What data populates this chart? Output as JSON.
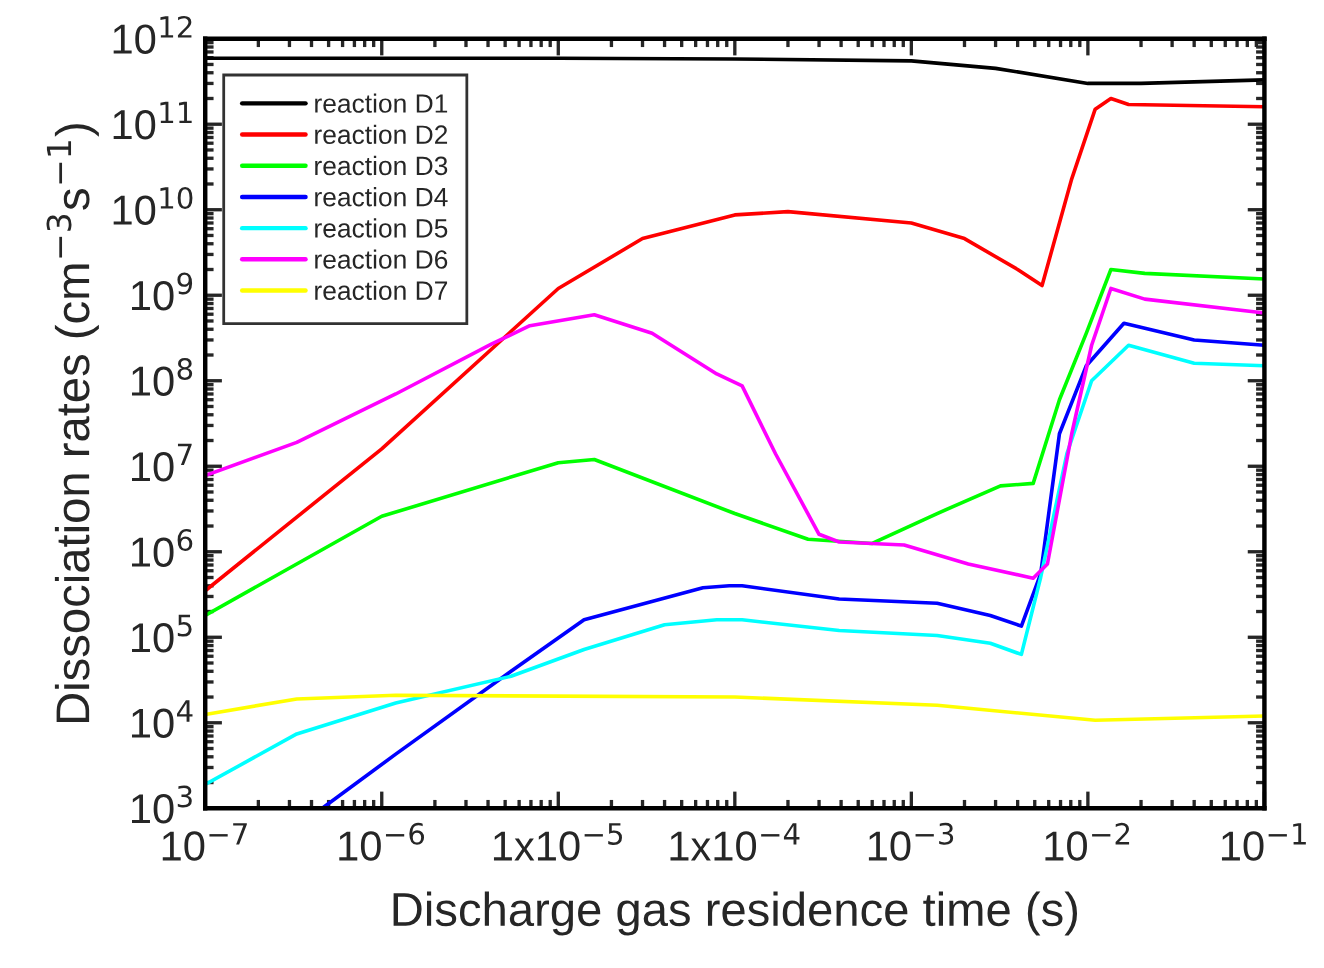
{
  "chart_data": {
    "type": "line",
    "xlabel": "Discharge gas residence time (s)",
    "ylabel": "Dissociation rates (cm$^{−3}$s$^{−1}$)",
    "log": "xy",
    "grid": false,
    "legend": "top left",
    "marker": "none",
    "line_style": "solid",
    "xlim": [
      1e-07,
      0.1
    ],
    "ylim": [
      1000,
      1000000000000.0
    ],
    "xticks": [
      {
        "value": 1e-07,
        "label": "10$^{−7}$"
      },
      {
        "value": 1e-06,
        "label": "10$^{−6}$"
      },
      {
        "value": 1e-05,
        "label": "1x10$^{−5}$"
      },
      {
        "value": 0.0001,
        "label": "1x10$^{−4}$"
      },
      {
        "value": 0.001,
        "label": "10$^{−3}$"
      },
      {
        "value": 0.01,
        "label": "10$^{−2}$"
      },
      {
        "value": 0.1,
        "label": "10$^{−1}$"
      }
    ],
    "yticks": [
      {
        "value": 1000,
        "label": "10$^{3}$"
      },
      {
        "value": 10000.0,
        "label": "10$^{4}$"
      },
      {
        "value": 100000.0,
        "label": "10$^{5}$"
      },
      {
        "value": 1000000.0,
        "label": "10$^{6}$"
      },
      {
        "value": 10000000.0,
        "label": "10$^{7}$"
      },
      {
        "value": 100000000.0,
        "label": "10$^{8}$"
      },
      {
        "value": 1000000000.0,
        "label": "10$^{9}$"
      },
      {
        "value": 10000000000.0,
        "label": "10$^{10}$"
      },
      {
        "value": 100000000000.0,
        "label": "10$^{11}$"
      },
      {
        "value": 1000000000000.0,
        "label": "10$^{12}$"
      }
    ],
    "series": [
      {
        "name": "reaction D1",
        "color": "#000000",
        "x": [
          1e-07,
          1e-05,
          0.0001,
          0.001,
          0.003,
          0.01,
          0.02,
          0.1
        ],
        "values": [
          590000000000.0,
          590000000000.0,
          580000000000.0,
          550000000000.0,
          450000000000.0,
          300000000000.0,
          300000000000.0,
          330000000000.0
        ]
      },
      {
        "name": "reaction D2",
        "color": "#ff0000",
        "x": [
          1e-07,
          1e-06,
          1e-05,
          3e-05,
          0.0001,
          0.0002,
          0.001,
          0.002,
          0.004,
          0.0055,
          0.0081,
          0.011,
          0.0135,
          0.017,
          0.1
        ],
        "values": [
          350000.0,
          16000000.0,
          1200000000.0,
          4600000000.0,
          8700000000.0,
          9500000000.0,
          7000000000.0,
          4600000000.0,
          2000000000.0,
          1300000000.0,
          23000000000.0,
          150000000000.0,
          200000000000.0,
          170000000000.0,
          160000000000.0
        ]
      },
      {
        "name": "reaction D3",
        "color": "#00ff00",
        "x": [
          1e-07,
          1e-06,
          1e-05,
          1.6e-05,
          0.0001,
          0.00026,
          0.0006,
          0.0014,
          0.0032,
          0.0049,
          0.0069,
          0.0098,
          0.0135,
          0.021,
          0.1
        ],
        "values": [
          180000.0,
          2600000.0,
          11000000.0,
          12000000.0,
          2800000.0,
          1400000.0,
          1250000.0,
          2800000.0,
          5900000.0,
          6300000.0,
          60000000.0,
          360000000.0,
          2000000000.0,
          1800000000.0,
          1550000000.0
        ]
      },
      {
        "name": "reaction D4",
        "color": "#0000ff",
        "x": [
          4.6e-07,
          1.2e-06,
          5.4e-06,
          1.4e-05,
          6.6e-05,
          9.3e-05,
          0.00011,
          0.00039,
          0.0014,
          0.0028,
          0.0042,
          0.0054,
          0.0069,
          0.0098,
          0.016,
          0.04,
          0.1
        ],
        "values": [
          1000,
          4300.0,
          40000.0,
          160000.0,
          380000.0,
          400000.0,
          400000.0,
          280000.0,
          250000.0,
          180000.0,
          135000.0,
          550000.0,
          24000000.0,
          150000000.0,
          470000000.0,
          300000000.0,
          260000000.0
        ]
      },
      {
        "name": "reaction D5",
        "color": "#00ffff",
        "x": [
          1e-07,
          3.3e-07,
          1.2e-06,
          5.4e-06,
          1.4e-05,
          4e-05,
          7.9e-05,
          0.00011,
          0.00039,
          0.0014,
          0.0028,
          0.0042,
          0.0054,
          0.0076,
          0.0105,
          0.017,
          0.04,
          0.1
        ],
        "values": [
          1900.0,
          7400.0,
          17000.0,
          35000.0,
          72000.0,
          140000.0,
          160000.0,
          160000.0,
          120000.0,
          105000.0,
          85000.0,
          63000.0,
          500000.0,
          14000000.0,
          100000000.0,
          260000000.0,
          160000000.0,
          150000000.0
        ]
      },
      {
        "name": "reaction D6",
        "color": "#ff00ff",
        "x": [
          1e-07,
          3.3e-07,
          1.2e-06,
          4.2e-06,
          6.9e-06,
          1.6e-05,
          3.4e-05,
          7.9e-05,
          0.00011,
          0.00017,
          0.0003,
          0.00039,
          0.00091,
          0.0021,
          0.0049,
          0.0059,
          0.0081,
          0.0105,
          0.0135,
          0.021,
          0.1
        ],
        "values": [
          7800000.0,
          19000000.0,
          70000000.0,
          270000000.0,
          440000000.0,
          590000000.0,
          360000000.0,
          120000000.0,
          87000000.0,
          14000000.0,
          1600000.0,
          1300000.0,
          1200000.0,
          720000.0,
          490000.0,
          720000.0,
          24000000.0,
          260000000.0,
          1200000000.0,
          900000000.0,
          620000000.0
        ]
      },
      {
        "name": "reaction D7",
        "color": "#ffff00",
        "x": [
          1e-07,
          3.3e-07,
          1.2e-06,
          0.0001,
          0.0014,
          0.011,
          0.1
        ],
        "values": [
          12500.0,
          19000.0,
          21000.0,
          20000.0,
          16000.0,
          10700.0,
          12000.0
        ]
      }
    ]
  }
}
